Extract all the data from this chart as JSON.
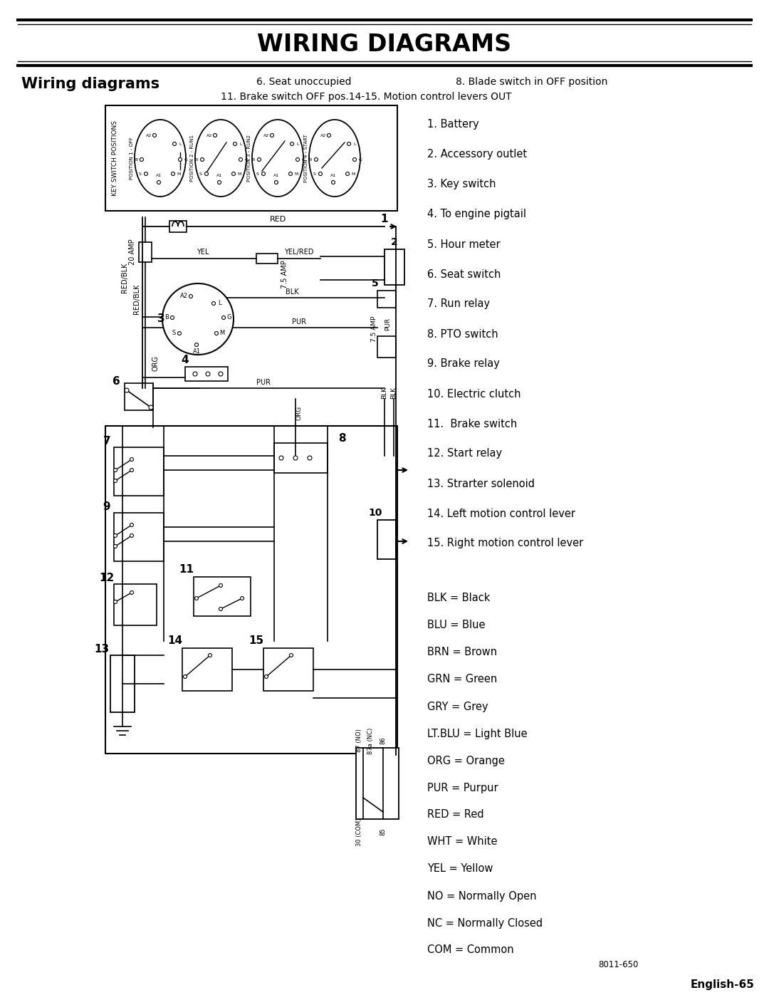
{
  "title": "WIRING DIAGRAMS",
  "subtitle": "Wiring diagrams",
  "condition_notes": [
    "6. Seat unoccupied",
    "8. Blade switch in OFF position",
    "11. Brake switch OFF pos.14-15. Motion control levers OUT"
  ],
  "numbered_items": [
    "1. Battery",
    "2. Accessory outlet",
    "3. Key switch",
    "4. To engine pigtail",
    "5. Hour meter",
    "6. Seat switch",
    "7. Run relay",
    "8. PTO switch",
    "9. Brake relay",
    "10. Electric clutch",
    "11.  Brake switch",
    "12. Start relay",
    "13. Strarter solenoid",
    "14. Left motion control lever",
    "15. Right motion control lever"
  ],
  "color_codes": [
    "BLK = Black",
    "BLU = Blue",
    "BRN = Brown",
    "GRN = Green",
    "GRY = Grey",
    "LT.BLU = Light Blue",
    "ORG = Orange",
    "PUR = Purpur",
    "RED = Red",
    "WHT = White",
    "YEL = Yellow",
    "NO = Normally Open",
    "NC = Normally Closed",
    "COM = Common"
  ],
  "key_switch_positions": [
    "POSITION 1 - OFF",
    "POSITION 2 - RUN1",
    "POSITION 3 - RUN2",
    "POSITION 4 - START"
  ],
  "page_label": "English-65",
  "figure_label": "8011-650",
  "bg_color": "#ffffff"
}
